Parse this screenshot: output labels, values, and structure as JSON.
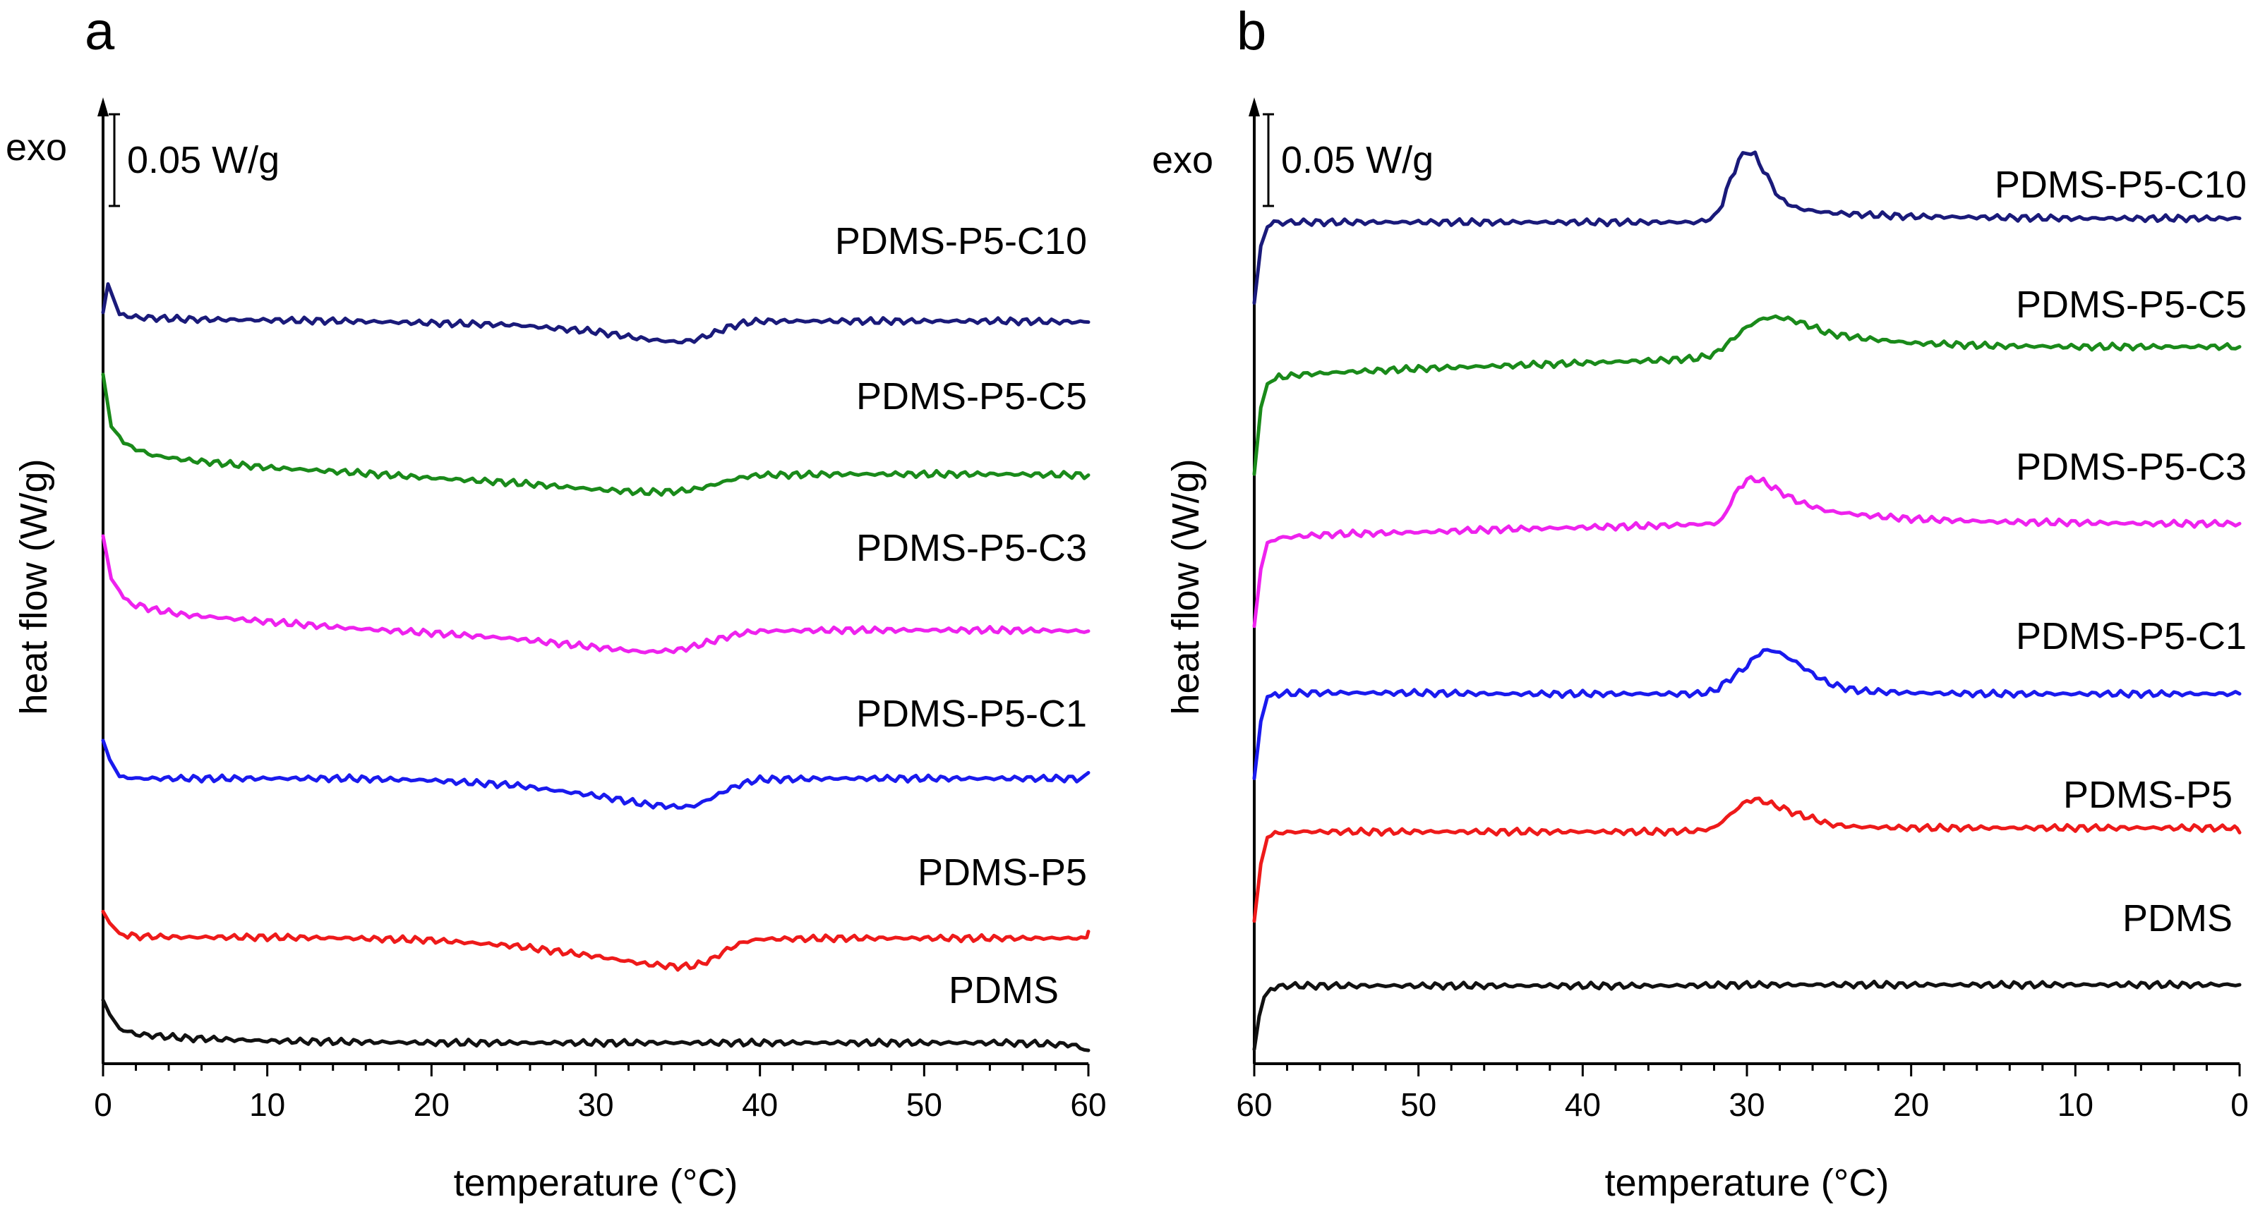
{
  "chart_data": [
    {
      "panel": "a",
      "type": "line",
      "xlabel": "temperature (°C)",
      "ylabel": "heat flow (W/g)",
      "exo_label": "exo",
      "scale_bar_label": "0.05 W/g",
      "xlim": [
        0,
        60
      ],
      "x_direction": "increasing",
      "xticks": [
        0,
        10,
        20,
        30,
        40,
        50,
        60
      ],
      "ylim": [
        0,
        1
      ],
      "series": [
        {
          "name": "PDMS-P5-C10",
          "color": "#1a1a7a",
          "x": [
            0,
            0.3,
            1,
            2,
            5,
            10,
            15,
            20,
            25,
            30,
            33,
            35,
            36,
            37,
            38,
            39,
            40,
            45,
            50,
            55,
            60
          ],
          "y": [
            0.79,
            0.82,
            0.788,
            0.785,
            0.783,
            0.782,
            0.781,
            0.779,
            0.777,
            0.77,
            0.762,
            0.759,
            0.761,
            0.767,
            0.774,
            0.779,
            0.781,
            0.781,
            0.781,
            0.781,
            0.78
          ]
        },
        {
          "name": "PDMS-P5-C5",
          "color": "#1a8a1a",
          "x": [
            0,
            0.5,
            1.5,
            3,
            5,
            10,
            15,
            20,
            25,
            30,
            33,
            35,
            36,
            37,
            38,
            39,
            40,
            45,
            50,
            55,
            60
          ],
          "y": [
            0.725,
            0.67,
            0.65,
            0.64,
            0.635,
            0.627,
            0.622,
            0.616,
            0.611,
            0.604,
            0.601,
            0.602,
            0.604,
            0.608,
            0.613,
            0.617,
            0.619,
            0.62,
            0.62,
            0.62,
            0.619
          ]
        },
        {
          "name": "PDMS-P5-C3",
          "color": "#ee22ee",
          "x": [
            0,
            0.5,
            1.5,
            3,
            5,
            10,
            15,
            20,
            25,
            30,
            33,
            35,
            36,
            37,
            38,
            39,
            40,
            45,
            50,
            55,
            60
          ],
          "y": [
            0.555,
            0.51,
            0.485,
            0.478,
            0.472,
            0.465,
            0.458,
            0.453,
            0.447,
            0.438,
            0.433,
            0.435,
            0.439,
            0.444,
            0.449,
            0.453,
            0.455,
            0.456,
            0.456,
            0.456,
            0.455
          ]
        },
        {
          "name": "PDMS-P5-C1",
          "color": "#1a1aee",
          "x": [
            0,
            0.4,
            1,
            2,
            5,
            10,
            15,
            20,
            25,
            30,
            33,
            35,
            36,
            37,
            38,
            39,
            40,
            45,
            50,
            55,
            59.8,
            60
          ],
          "y": [
            0.34,
            0.32,
            0.302,
            0.3,
            0.3,
            0.3,
            0.3,
            0.298,
            0.293,
            0.282,
            0.273,
            0.27,
            0.271,
            0.279,
            0.288,
            0.295,
            0.299,
            0.3,
            0.3,
            0.3,
            0.3,
            0.306
          ]
        },
        {
          "name": "PDMS-P5",
          "color": "#ee1a1a",
          "x": [
            0,
            0.4,
            1,
            2,
            5,
            10,
            15,
            20,
            25,
            30,
            33,
            35,
            36,
            37,
            38,
            39,
            40,
            45,
            50,
            55,
            59.8,
            60
          ],
          "y": [
            0.16,
            0.148,
            0.137,
            0.134,
            0.133,
            0.133,
            0.132,
            0.13,
            0.124,
            0.113,
            0.105,
            0.102,
            0.103,
            0.109,
            0.12,
            0.128,
            0.131,
            0.132,
            0.132,
            0.132,
            0.132,
            0.139
          ]
        },
        {
          "name": "PDMS",
          "color": "#111111",
          "x": [
            0,
            0.4,
            1,
            2,
            5,
            10,
            15,
            20,
            25,
            30,
            35,
            40,
            45,
            50,
            55,
            59,
            60
          ],
          "y": [
            0.067,
            0.052,
            0.037,
            0.031,
            0.027,
            0.024,
            0.023,
            0.022,
            0.022,
            0.022,
            0.022,
            0.022,
            0.022,
            0.022,
            0.022,
            0.02,
            0.014
          ]
        }
      ]
    },
    {
      "panel": "b",
      "type": "line",
      "xlabel": "temperature (°C)",
      "ylabel": "heat flow (W/g)",
      "exo_label": "exo",
      "scale_bar_label": "0.05 W/g",
      "xlim": [
        60,
        0
      ],
      "x_direction": "decreasing",
      "xticks": [
        60,
        50,
        40,
        30,
        20,
        10,
        0
      ],
      "ylim": [
        0,
        1
      ],
      "series": [
        {
          "name": "PDMS-P5-C10",
          "color": "#1a1a7a",
          "x": [
            60,
            59.6,
            59.2,
            58.8,
            58,
            55,
            50,
            45,
            40,
            35,
            33,
            32,
            31.5,
            31,
            30.5,
            30,
            29.5,
            29,
            28.5,
            28,
            27,
            26,
            25,
            23,
            20,
            15,
            10,
            5,
            0
          ],
          "y": [
            0.8,
            0.86,
            0.88,
            0.884,
            0.885,
            0.885,
            0.885,
            0.885,
            0.885,
            0.885,
            0.885,
            0.89,
            0.905,
            0.93,
            0.95,
            0.96,
            0.955,
            0.94,
            0.925,
            0.91,
            0.9,
            0.897,
            0.895,
            0.893,
            0.891,
            0.89,
            0.889,
            0.889,
            0.889
          ]
        },
        {
          "name": "PDMS-P5-C5",
          "color": "#1a8a1a",
          "x": [
            60,
            59.6,
            59.2,
            58.5,
            57,
            55,
            50,
            45,
            40,
            35,
            33,
            32,
            31,
            30,
            29,
            28,
            27,
            26,
            25,
            23,
            20,
            15,
            10,
            5,
            0
          ],
          "y": [
            0.62,
            0.69,
            0.715,
            0.722,
            0.725,
            0.727,
            0.731,
            0.734,
            0.737,
            0.74,
            0.742,
            0.746,
            0.76,
            0.775,
            0.784,
            0.785,
            0.781,
            0.775,
            0.768,
            0.763,
            0.758,
            0.755,
            0.754,
            0.754,
            0.754
          ]
        },
        {
          "name": "PDMS-P5-C3",
          "color": "#ee22ee",
          "x": [
            60,
            59.6,
            59.2,
            58.5,
            57,
            55,
            50,
            45,
            40,
            35,
            32,
            31.5,
            31,
            30.5,
            30,
            29.5,
            29,
            28,
            27,
            26,
            25,
            23,
            20,
            15,
            10,
            5,
            0
          ],
          "y": [
            0.46,
            0.52,
            0.548,
            0.553,
            0.555,
            0.557,
            0.559,
            0.562,
            0.564,
            0.566,
            0.568,
            0.572,
            0.59,
            0.605,
            0.614,
            0.615,
            0.612,
            0.602,
            0.592,
            0.586,
            0.581,
            0.577,
            0.573,
            0.57,
            0.569,
            0.568,
            0.568
          ]
        },
        {
          "name": "PDMS-P5-C1",
          "color": "#1a1aee",
          "x": [
            60,
            59.6,
            59.2,
            58.5,
            57,
            55,
            50,
            45,
            40,
            35,
            33,
            32,
            31,
            30.5,
            30,
            29.5,
            29,
            28.5,
            28,
            27,
            26,
            25,
            24,
            23,
            20,
            15,
            10,
            5,
            0
          ],
          "y": [
            0.3,
            0.36,
            0.386,
            0.389,
            0.39,
            0.39,
            0.39,
            0.389,
            0.389,
            0.389,
            0.389,
            0.392,
            0.405,
            0.412,
            0.418,
            0.428,
            0.434,
            0.435,
            0.432,
            0.422,
            0.41,
            0.4,
            0.395,
            0.392,
            0.39,
            0.389,
            0.389,
            0.389,
            0.389
          ]
        },
        {
          "name": "PDMS-P5",
          "color": "#ee1a1a",
          "x": [
            60,
            59.6,
            59.2,
            58.5,
            57,
            55,
            50,
            45,
            40,
            35,
            33,
            32,
            31,
            30.5,
            30,
            29.5,
            29,
            28,
            27,
            26,
            25,
            24,
            23,
            20,
            15,
            10,
            5,
            0.3,
            0
          ],
          "y": [
            0.15,
            0.21,
            0.238,
            0.243,
            0.244,
            0.244,
            0.244,
            0.244,
            0.244,
            0.244,
            0.245,
            0.248,
            0.262,
            0.27,
            0.276,
            0.278,
            0.276,
            0.27,
            0.263,
            0.258,
            0.252,
            0.25,
            0.249,
            0.248,
            0.248,
            0.248,
            0.248,
            0.248,
            0.243
          ]
        },
        {
          "name": "PDMS",
          "color": "#111111",
          "x": [
            60,
            59.7,
            59.4,
            59,
            58.5,
            58,
            55,
            50,
            45,
            40,
            35,
            30,
            25,
            20,
            15,
            10,
            5,
            0
          ],
          "y": [
            0.015,
            0.05,
            0.07,
            0.079,
            0.081,
            0.082,
            0.082,
            0.082,
            0.082,
            0.082,
            0.082,
            0.083,
            0.083,
            0.083,
            0.083,
            0.083,
            0.083,
            0.083
          ]
        }
      ]
    }
  ]
}
